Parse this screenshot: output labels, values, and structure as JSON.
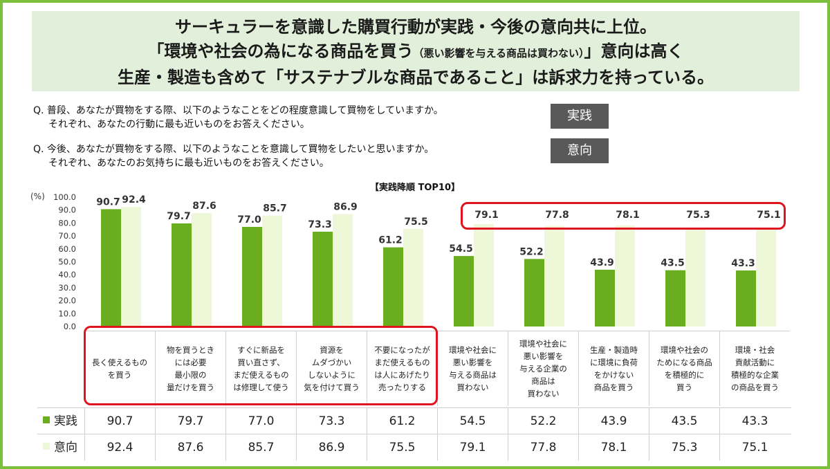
{
  "headline": {
    "line1": "サーキュラーを意識した購買行動が実践・今後の意向共に上位。",
    "line2_main": "「環境や社会の為になる商品を買う",
    "line2_small": "（悪い影響を与える商品は買わない）",
    "line2_end": "」意向は高く",
    "line3": "生産・製造も含めて「サステナブルな商品であること」は訴求力を持っている。"
  },
  "questions": {
    "q1_main": "Q.  普段、あなたが買物をする際、以下のようなことをどの程度意識して買物をしていますか。",
    "q1_sub": "それぞれ、あなたの行動に最も近いものをお答えください。",
    "q2_main": "Q.  今後、あなたが買物をする際、以下のようなことを意識して買物をしたいと思いますか。",
    "q2_sub": "それぞれ、あなたのお気持ちに最も近いものをお答えください。"
  },
  "tags": {
    "jissen": "実践",
    "ikou": "意向"
  },
  "chart_data": {
    "type": "bar",
    "title": "【実践降順 TOP10】",
    "ylabel": "(%)",
    "ylim": [
      0,
      100
    ],
    "yticks": [
      "100.0",
      "90.0",
      "80.0",
      "70.0",
      "60.0",
      "50.0",
      "40.0",
      "30.0",
      "20.0",
      "10.0",
      "0.0"
    ],
    "categories": [
      [
        "長く使えるもの",
        "を買う"
      ],
      [
        "物を買うとき",
        "には必要",
        "最小限の",
        "量だけを買う"
      ],
      [
        "すぐに新品を",
        "買い直さず、",
        "まだ使えるもの",
        "は修理して使う"
      ],
      [
        "資源を",
        "ムダづかい",
        "しないように",
        "気を付けて買う"
      ],
      [
        "不要になったが",
        "まだ使えるもの",
        "は人にあげたり",
        "売ったりする"
      ],
      [
        "環境や社会に",
        "悪い影響を",
        "与える商品は",
        "買わない"
      ],
      [
        "環境や社会に",
        "悪い影響を",
        "与える企業の",
        "商品は",
        "買わない"
      ],
      [
        "生産・製造時",
        "に環境に負荷",
        "をかけない",
        "商品を買う"
      ],
      [
        "環境や社会の",
        "ためになる商品",
        "を積極的に",
        "買う"
      ],
      [
        "環境・社会",
        "貢献活動に",
        "積極的な企業",
        "の商品を買う"
      ]
    ],
    "series": [
      {
        "name": "実践",
        "color": "#6aad1e",
        "values": [
          90.7,
          79.7,
          77.0,
          73.3,
          61.2,
          54.5,
          52.2,
          43.9,
          43.5,
          43.3
        ],
        "labels": [
          "90.7",
          "79.7",
          "77.0",
          "73.3",
          "61.2",
          "54.5",
          "52.2",
          "43.9",
          "43.5",
          "43.3"
        ]
      },
      {
        "name": "意向",
        "color": "#eef8d8",
        "values": [
          92.4,
          87.6,
          85.7,
          86.9,
          75.5,
          79.1,
          77.8,
          78.1,
          75.3,
          75.1
        ],
        "labels": [
          "92.4",
          "87.6",
          "85.7",
          "86.9",
          "75.5",
          "79.1",
          "77.8",
          "78.1",
          "75.3",
          "75.1"
        ]
      }
    ]
  }
}
